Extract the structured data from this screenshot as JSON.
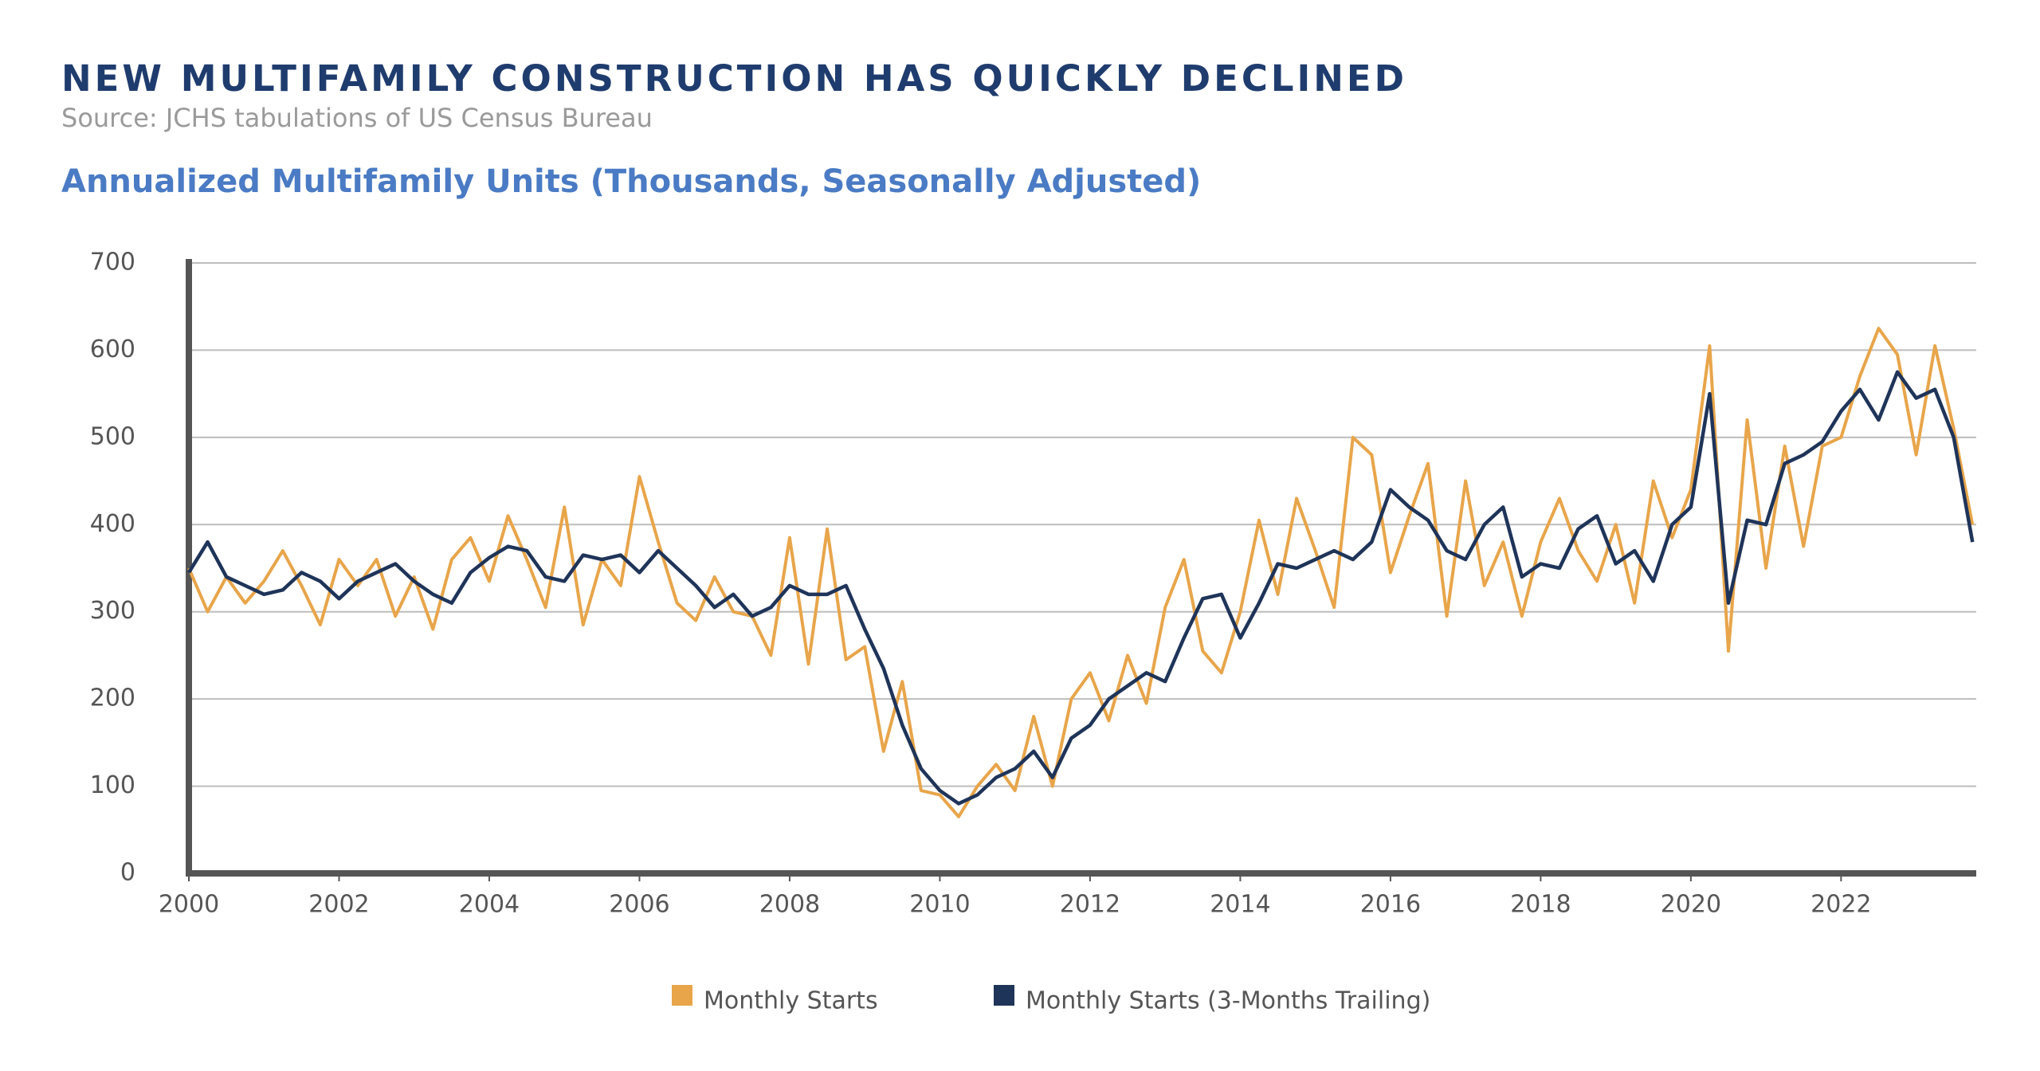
{
  "chart_data": {
    "type": "line",
    "title": "NEW MULTIFAMILY CONSTRUCTION HAS QUICKLY DECLINED",
    "subtitle": "Source: JCHS tabulations of US Census Bureau",
    "y_label": "Annualized Multifamily Units (Thousands, Seasonally Adjusted)",
    "x": [
      2000,
      2000.25,
      2000.5,
      2000.75,
      2001,
      2001.25,
      2001.5,
      2001.75,
      2002,
      2002.25,
      2002.5,
      2002.75,
      2003,
      2003.25,
      2003.5,
      2003.75,
      2004,
      2004.25,
      2004.5,
      2004.75,
      2005,
      2005.25,
      2005.5,
      2005.75,
      2006,
      2006.25,
      2006.5,
      2006.75,
      2007,
      2007.25,
      2007.5,
      2007.75,
      2008,
      2008.25,
      2008.5,
      2008.75,
      2009,
      2009.25,
      2009.5,
      2009.75,
      2010,
      2010.25,
      2010.5,
      2010.75,
      2011,
      2011.25,
      2011.5,
      2011.75,
      2012,
      2012.25,
      2012.5,
      2012.75,
      2013,
      2013.25,
      2013.5,
      2013.75,
      2014,
      2014.25,
      2014.5,
      2014.75,
      2015,
      2015.25,
      2015.5,
      2015.75,
      2016,
      2016.25,
      2016.5,
      2016.75,
      2017,
      2017.25,
      2017.5,
      2017.75,
      2018,
      2018.25,
      2018.5,
      2018.75,
      2019,
      2019.25,
      2019.5,
      2019.75,
      2020,
      2020.25,
      2020.5,
      2020.75,
      2021,
      2021.25,
      2021.5,
      2021.75,
      2022,
      2022.25,
      2022.5,
      2022.75,
      2023,
      2023.25,
      2023.5,
      2023.75
    ],
    "series": [
      {
        "name": "Monthly Starts",
        "color": "#e8a54a",
        "values": [
          350,
          300,
          340,
          310,
          335,
          370,
          330,
          285,
          360,
          330,
          360,
          295,
          340,
          280,
          360,
          385,
          335,
          410,
          360,
          305,
          420,
          285,
          360,
          330,
          455,
          380,
          310,
          290,
          340,
          300,
          295,
          250,
          385,
          240,
          395,
          245,
          260,
          140,
          220,
          95,
          90,
          65,
          100,
          125,
          95,
          180,
          100,
          200,
          230,
          175,
          250,
          195,
          305,
          360,
          255,
          230,
          300,
          405,
          320,
          430,
          370,
          305,
          500,
          480,
          345,
          410,
          470,
          295,
          450,
          330,
          380,
          295,
          380,
          430,
          370,
          335,
          400,
          310,
          450,
          385,
          440,
          605,
          255,
          520,
          350,
          490,
          375,
          490,
          500,
          570,
          625,
          595,
          480,
          605,
          510,
          400
        ]
      },
      {
        "name": "Monthly Starts (3-Months Trailing)",
        "color": "#1f3459",
        "values": [
          345,
          380,
          340,
          330,
          320,
          325,
          345,
          335,
          315,
          335,
          345,
          355,
          335,
          320,
          310,
          345,
          362,
          375,
          370,
          340,
          335,
          365,
          360,
          365,
          345,
          370,
          350,
          330,
          305,
          320,
          295,
          305,
          330,
          320,
          320,
          330,
          280,
          235,
          170,
          120,
          95,
          80,
          90,
          110,
          120,
          140,
          110,
          155,
          170,
          200,
          215,
          230,
          220,
          270,
          315,
          320,
          270,
          310,
          355,
          350,
          360,
          370,
          360,
          380,
          440,
          420,
          405,
          370,
          360,
          400,
          420,
          340,
          355,
          350,
          395,
          410,
          355,
          370,
          335,
          400,
          420,
          550,
          310,
          405,
          400,
          470,
          480,
          495,
          530,
          555,
          520,
          575,
          545,
          555,
          500,
          380
        ]
      }
    ],
    "xlim": [
      2000,
      2023.8
    ],
    "ylim": [
      0,
      700
    ],
    "xticks": [
      2000,
      2002,
      2004,
      2006,
      2008,
      2010,
      2012,
      2014,
      2016,
      2018,
      2020,
      2022
    ],
    "yticks": [
      0,
      100,
      200,
      300,
      400,
      500,
      600,
      700
    ],
    "grid": true
  }
}
